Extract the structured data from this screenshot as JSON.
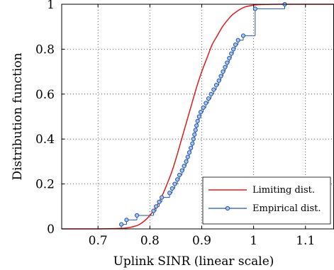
{
  "chart_data": {
    "type": "line",
    "xlabel": "Uplink SINR (linear scale)",
    "ylabel": "Distribution function",
    "xlim": [
      0.63,
      1.155
    ],
    "ylim": [
      0,
      1
    ],
    "xticks": [
      0.7,
      0.8,
      0.9,
      1,
      1.1
    ],
    "xtick_labels": [
      "0.7",
      "0.8",
      "0.9",
      "1",
      "1.1"
    ],
    "yticks": [
      0,
      0.2,
      0.4,
      0.6,
      0.8,
      1
    ],
    "ytick_labels": [
      "0",
      "0.2",
      "0.4",
      "0.6",
      "0.8",
      "1"
    ],
    "grid": true,
    "legend_position": "bottom-right",
    "series": [
      {
        "name": "Limiting dist.",
        "color": "#e41a1c",
        "style": "line",
        "x": [
          0.63,
          0.7,
          0.74,
          0.76,
          0.78,
          0.8,
          0.82,
          0.84,
          0.85,
          0.86,
          0.87,
          0.88,
          0.89,
          0.9,
          0.91,
          0.92,
          0.93,
          0.94,
          0.95,
          0.96,
          0.98,
          1.0,
          1.02,
          1.05,
          1.155
        ],
        "y": [
          0,
          0,
          0.002,
          0.006,
          0.02,
          0.06,
          0.13,
          0.24,
          0.31,
          0.39,
          0.47,
          0.55,
          0.63,
          0.7,
          0.76,
          0.82,
          0.86,
          0.9,
          0.93,
          0.955,
          0.985,
          0.996,
          0.999,
          1,
          1
        ]
      },
      {
        "name": "Empirical dist.",
        "color": "#2255aa",
        "style": "step-marker",
        "x": [
          0.745,
          0.755,
          0.775,
          0.807,
          0.812,
          0.818,
          0.823,
          0.838,
          0.843,
          0.848,
          0.853,
          0.857,
          0.862,
          0.866,
          0.87,
          0.873,
          0.876,
          0.879,
          0.882,
          0.884,
          0.886,
          0.888,
          0.89,
          0.892,
          0.895,
          0.898,
          0.903,
          0.908,
          0.913,
          0.918,
          0.923,
          0.928,
          0.933,
          0.937,
          0.941,
          0.945,
          0.949,
          0.953,
          0.957,
          0.961,
          0.965,
          0.97,
          0.98,
          1.003,
          1.06
        ],
        "y": [
          0.02,
          0.04,
          0.06,
          0.08,
          0.1,
          0.12,
          0.14,
          0.16,
          0.18,
          0.2,
          0.22,
          0.24,
          0.26,
          0.28,
          0.3,
          0.32,
          0.34,
          0.36,
          0.38,
          0.4,
          0.42,
          0.44,
          0.46,
          0.48,
          0.5,
          0.52,
          0.54,
          0.56,
          0.58,
          0.6,
          0.62,
          0.64,
          0.66,
          0.68,
          0.7,
          0.72,
          0.74,
          0.76,
          0.78,
          0.8,
          0.82,
          0.84,
          0.86,
          0.98,
          1.0
        ]
      }
    ]
  }
}
